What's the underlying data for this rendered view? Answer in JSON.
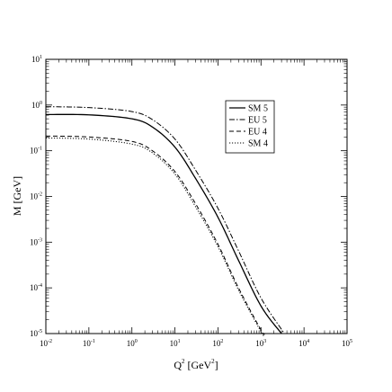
{
  "chart_data": {
    "type": "line",
    "xlabel": "Q",
    "xlabel_sup": "2",
    "xlabel_unit": "[GeV",
    "xlabel_unit_sup": "2",
    "xlabel_unit_close": "]",
    "ylabel": "M [GeV]",
    "x_scale": "log",
    "y_scale": "log",
    "xlim": [
      0.01,
      100000
    ],
    "ylim": [
      1e-05,
      10
    ],
    "x_ticks": [
      {
        "base": "10",
        "exp": "-2",
        "value": 0.01
      },
      {
        "base": "10",
        "exp": "-1",
        "value": 0.1
      },
      {
        "base": "10",
        "exp": "0",
        "value": 1
      },
      {
        "base": "10",
        "exp": "1",
        "value": 10
      },
      {
        "base": "10",
        "exp": "2",
        "value": 100
      },
      {
        "base": "10",
        "exp": "3",
        "value": 1000
      },
      {
        "base": "10",
        "exp": "4",
        "value": 10000
      },
      {
        "base": "10",
        "exp": "5",
        "value": 100000
      }
    ],
    "y_ticks": [
      {
        "base": "10",
        "exp": "-5",
        "value": 1e-05
      },
      {
        "base": "10",
        "exp": "-4",
        "value": 0.0001
      },
      {
        "base": "10",
        "exp": "-3",
        "value": 0.001
      },
      {
        "base": "10",
        "exp": "-2",
        "value": 0.01
      },
      {
        "base": "10",
        "exp": "-1",
        "value": 0.1
      },
      {
        "base": "10",
        "exp": "0",
        "value": 1
      },
      {
        "base": "10",
        "exp": "1",
        "value": 10
      }
    ],
    "legend_position": "upper-right",
    "series": [
      {
        "name": "SM 5",
        "style": "solid",
        "x": [
          0.01,
          0.1,
          1,
          3,
          10,
          30,
          100,
          300,
          1000,
          3000
        ],
        "y": [
          0.62,
          0.61,
          0.5,
          0.33,
          0.12,
          0.025,
          0.0035,
          0.0004,
          4e-05,
          1e-05
        ]
      },
      {
        "name": "EU 5",
        "style": "dashdot",
        "x": [
          0.01,
          0.1,
          1,
          3,
          10,
          30,
          100,
          300,
          1000,
          3500
        ],
        "y": [
          0.92,
          0.88,
          0.72,
          0.48,
          0.18,
          0.038,
          0.0055,
          0.00065,
          6e-05,
          1e-05
        ]
      },
      {
        "name": "EU 4",
        "style": "dashed",
        "x": [
          0.01,
          0.1,
          1,
          3,
          10,
          30,
          100,
          300,
          1000,
          1200
        ],
        "y": [
          0.21,
          0.2,
          0.16,
          0.1,
          0.035,
          0.007,
          0.0009,
          0.0001,
          1.2e-05,
          1e-05
        ]
      },
      {
        "name": "SM 4",
        "style": "dotted",
        "x": [
          0.01,
          0.1,
          1,
          3,
          10,
          30,
          100,
          300,
          1000,
          1100
        ],
        "y": [
          0.19,
          0.18,
          0.14,
          0.09,
          0.031,
          0.006,
          0.0008,
          9e-05,
          1.1e-05,
          1e-05
        ]
      }
    ]
  }
}
